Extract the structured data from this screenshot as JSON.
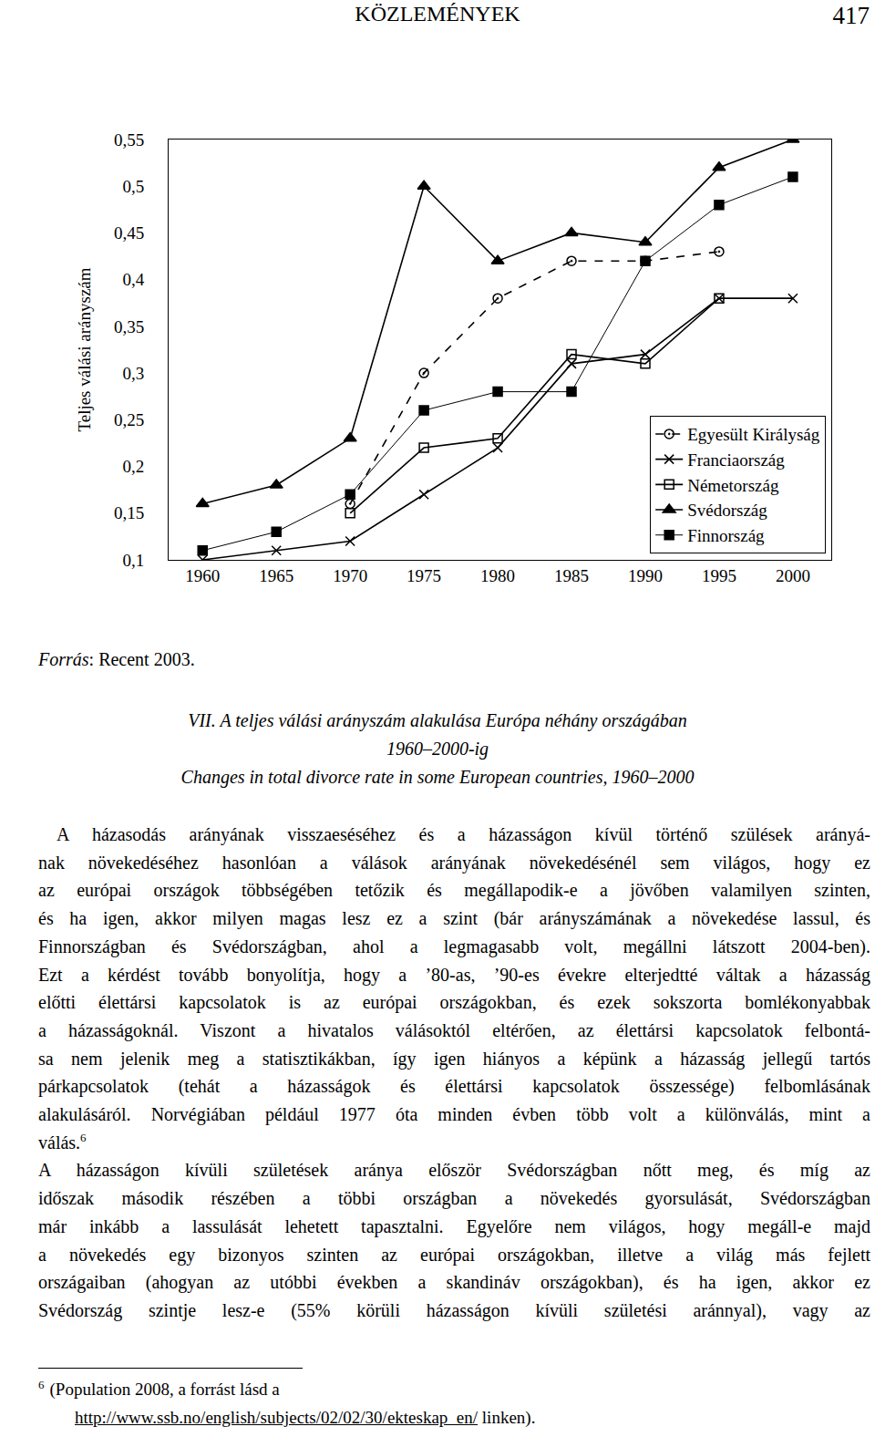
{
  "header": {
    "title": "KÖZLEMÉNYEK",
    "page": "417"
  },
  "chart_data": {
    "type": "line",
    "y_label": "Teljes válási arányszám",
    "x": [
      1960,
      1965,
      1970,
      1975,
      1980,
      1985,
      1990,
      1995,
      2000
    ],
    "xlim": [
      1957.7,
      2002.6
    ],
    "xticks": [
      1960,
      1965,
      1970,
      1975,
      1980,
      1985,
      1990,
      1995,
      2000
    ],
    "ylim": [
      0.1,
      0.55
    ],
    "yticks": [
      {
        "value": 0.1,
        "label": "0,1"
      },
      {
        "value": 0.15,
        "label": "0,15"
      },
      {
        "value": 0.2,
        "label": "0,2"
      },
      {
        "value": 0.25,
        "label": "0,25"
      },
      {
        "value": 0.3,
        "label": "0,3"
      },
      {
        "value": 0.35,
        "label": "0,35"
      },
      {
        "value": 0.4,
        "label": "0,4"
      },
      {
        "value": 0.45,
        "label": "0,45"
      },
      {
        "value": 0.5,
        "label": "0,5"
      },
      {
        "value": 0.55,
        "label": "0,55"
      }
    ],
    "grid": false,
    "legend": "lower right",
    "series": [
      {
        "name": "Egyesült Királyság",
        "color": "#000000",
        "marker": "circle-open-dot",
        "line_style": "dash",
        "values": [
          null,
          null,
          0.16,
          0.3,
          0.38,
          0.42,
          0.42,
          0.43,
          null
        ]
      },
      {
        "name": "Franciaország",
        "color": "#000000",
        "marker": "x-thin-open",
        "line_style": "solid",
        "values": [
          0.1,
          0.11,
          0.12,
          0.17,
          0.22,
          0.31,
          0.32,
          0.38,
          0.38
        ]
      },
      {
        "name": "Németország",
        "color": "#000000",
        "marker": "square-open",
        "line_style": "solid",
        "values": [
          null,
          null,
          0.15,
          0.22,
          0.23,
          0.32,
          0.31,
          0.38,
          null
        ]
      },
      {
        "name": "Svédország",
        "color": "#000000",
        "marker": "triangle-up",
        "line_style": "solid",
        "values": [
          0.16,
          0.18,
          0.23,
          0.5,
          0.42,
          0.45,
          0.44,
          0.52,
          0.55
        ]
      },
      {
        "name": "Finnország",
        "color": "#000000",
        "marker": "square",
        "line_style": "solid",
        "values": [
          0.11,
          0.13,
          0.17,
          0.26,
          0.28,
          0.28,
          0.42,
          0.48,
          0.51
        ]
      }
    ]
  },
  "source": {
    "label": "Forrás",
    "text": ": Recent 2003."
  },
  "caption": [
    "VII. A teljes válási arányszám alakulása Európa néhány országában",
    "1960–2000-ig",
    "Changes in total divorce rate in some European countries, 1960–2000"
  ],
  "paragraphs": [
    {
      "lines": [
        "A házasodás arányának visszaeséséhez és a házasságon kívül történő szülések arányá-",
        "nak növekedéséhez hasonlóan a válások arányának növekedésénél sem világos, hogy ez",
        "az európai országok többségében tetőzik és megállapodik-e a jövőben valamilyen szinten,",
        "és ha igen, akkor milyen magas lesz ez a szint (bár arányszámának a növekedése lassul, és",
        "Finnországban és Svédországban, ahol a legmagasabb volt, megállni látszott 2004-ben).",
        "Ezt a kérdést tovább bonyolítja, hogy a ’80-as, ’90-es évekre elterjedtté váltak a házasság",
        "előtti élettársi kapcsolatok is az európai országokban, és ezek sokszorta bomlékonyabbak",
        "a házasságoknál. Viszont a hivatalos válásoktól eltérően, az élettársi kapcsolatok felbontá-",
        "sa nem jelenik meg a statisztikákban, így igen hiányos a képünk a házasság jellegű tartós",
        "párkapcsolatok (tehát a házasságok és élettársi kapcsolatok összessége) felbomlásának",
        "alakulásáról. Norvégiában például 1977 óta minden évben több volt a különválás, mint a",
        "válás."
      ],
      "footnote_ref": "6"
    },
    {
      "lines": [
        "A házasságon kívüli születések aránya először Svédországban nőtt meg, és míg az",
        "időszak második részében a többi országban a növekedés gyorsulását, Svédországban",
        "már inkább a lassulását lehetett tapasztalni. Egyelőre nem világos, hogy megáll-e majd",
        "a növekedés egy bizonyos szinten az európai országokban, illetve a világ más fejlett",
        "országaiban (ahogyan az utóbbi években a skandináv országokban), és ha igen, akkor ez",
        "Svédország szintje lesz-e (55% körüli házasságon kívüli születési aránnyal), vagy az"
      ]
    }
  ],
  "footnote": {
    "number": "6",
    "text": "(Population 2008, a forrást lásd a",
    "link": "http://www.ssb.no/english/subjects/02/02/30/ekteskap_en/",
    "after": "linken)."
  }
}
